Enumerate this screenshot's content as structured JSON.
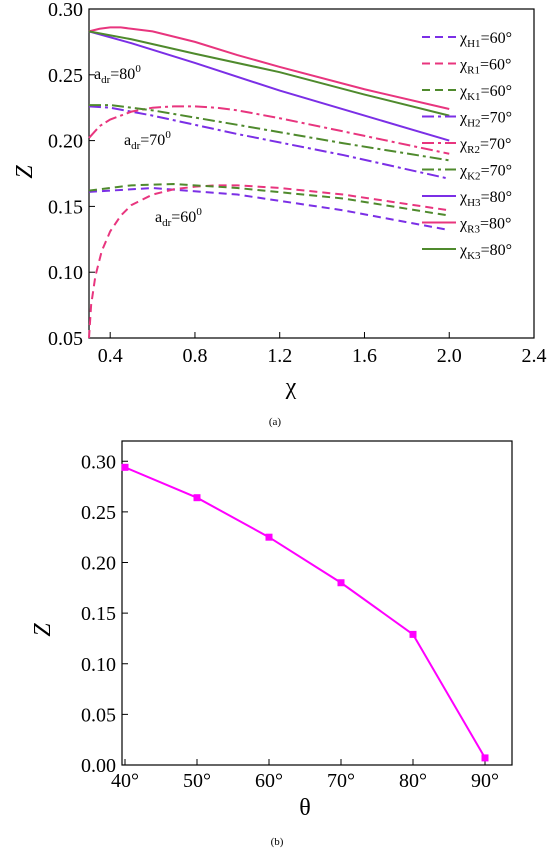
{
  "chart_data": [
    {
      "id": "a",
      "type": "line",
      "caption": "(a)",
      "xlabel": "χ",
      "ylabel": "Z",
      "xlim": [
        0.3,
        2.4
      ],
      "ylim": [
        0.05,
        0.3
      ],
      "xticks": [
        "0.4",
        "0.8",
        "1.2",
        "1.6",
        "2.0",
        "2.4"
      ],
      "yticks": [
        "0.05",
        "0.10",
        "0.15",
        "0.20",
        "0.25",
        "0.30"
      ],
      "legend_position": "right",
      "annotations": [
        {
          "text": "a",
          "sub": "dr",
          "rest": "=80",
          "sup": "0",
          "near": {
            "x": 0.32,
            "y": 0.262
          }
        },
        {
          "text": "a",
          "sub": "dr",
          "rest": "=70",
          "sup": "0",
          "near": {
            "x": 0.42,
            "y": 0.201
          }
        },
        {
          "text": "a",
          "sub": "dr",
          "rest": "=60",
          "sup": "0",
          "near": {
            "x": 0.69,
            "y": 0.137
          }
        }
      ],
      "series": [
        {
          "name": "χH1=60°",
          "base": "χ",
          "sub": "H1",
          "suffix": "=60°",
          "color": "#7b2fe6",
          "dash": "8,5",
          "x": [
            0.3,
            0.6,
            1.0,
            1.5,
            2.0
          ],
          "y": [
            0.161,
            0.164,
            0.159,
            0.147,
            0.132
          ]
        },
        {
          "name": "χR1=60°",
          "base": "χ",
          "sub": "R1",
          "suffix": "=60°",
          "color": "#e8357e",
          "dash": "8,5",
          "x": [
            0.3,
            0.31,
            0.33,
            0.36,
            0.4,
            0.45,
            0.5,
            0.6,
            0.7,
            0.8,
            0.9,
            1.0,
            1.2,
            1.5,
            2.0
          ],
          "y": [
            0.05,
            0.075,
            0.097,
            0.116,
            0.131,
            0.143,
            0.151,
            0.159,
            0.163,
            0.165,
            0.166,
            0.166,
            0.164,
            0.159,
            0.147
          ]
        },
        {
          "name": "χK1=60°",
          "base": "χ",
          "sub": "K1",
          "suffix": "=60°",
          "color": "#4f8a2d",
          "dash": "8,5",
          "x": [
            0.3,
            0.5,
            0.7,
            1.0,
            1.5,
            2.0
          ],
          "y": [
            0.162,
            0.166,
            0.167,
            0.164,
            0.156,
            0.143
          ]
        },
        {
          "name": "χH2=70°",
          "base": "χ",
          "sub": "H2",
          "suffix": "=70°",
          "color": "#7b2fe6",
          "dash": "12,4,3,4",
          "x": [
            0.3,
            0.4,
            0.6,
            1.0,
            1.5,
            2.0
          ],
          "y": [
            0.226,
            0.225,
            0.219,
            0.205,
            0.189,
            0.171
          ]
        },
        {
          "name": "χR2=70°",
          "base": "χ",
          "sub": "R2",
          "suffix": "=70°",
          "color": "#e8357e",
          "dash": "12,4,3,4",
          "x": [
            0.3,
            0.35,
            0.4,
            0.5,
            0.6,
            0.7,
            0.8,
            0.9,
            1.0,
            1.2,
            1.5,
            2.0
          ],
          "y": [
            0.202,
            0.211,
            0.216,
            0.222,
            0.225,
            0.226,
            0.226,
            0.225,
            0.223,
            0.217,
            0.207,
            0.19
          ]
        },
        {
          "name": "χK2=70°",
          "base": "χ",
          "sub": "K2",
          "suffix": "=70°",
          "color": "#4f8a2d",
          "dash": "12,4,3,4",
          "x": [
            0.3,
            0.4,
            0.6,
            1.0,
            1.5,
            2.0
          ],
          "y": [
            0.227,
            0.227,
            0.223,
            0.212,
            0.198,
            0.185
          ]
        },
        {
          "name": "χH3=80°",
          "base": "χ",
          "sub": "H3",
          "suffix": "=80°",
          "color": "#7b2fe6",
          "dash": "",
          "x": [
            0.3,
            0.5,
            0.8,
            1.2,
            1.6,
            2.0
          ],
          "y": [
            0.283,
            0.274,
            0.259,
            0.238,
            0.219,
            0.2
          ]
        },
        {
          "name": "χR3=80°",
          "base": "χ",
          "sub": "R3",
          "suffix": "=80°",
          "color": "#e8357e",
          "dash": "",
          "x": [
            0.3,
            0.35,
            0.4,
            0.45,
            0.5,
            0.6,
            0.8,
            1.0,
            1.2,
            1.6,
            2.0
          ],
          "y": [
            0.283,
            0.285,
            0.286,
            0.286,
            0.285,
            0.283,
            0.275,
            0.265,
            0.256,
            0.239,
            0.224
          ]
        },
        {
          "name": "χK3=80°",
          "base": "χ",
          "sub": "K3",
          "suffix": "=80°",
          "color": "#4f8a2d",
          "dash": "",
          "x": [
            0.3,
            0.5,
            0.8,
            1.2,
            1.6,
            2.0
          ],
          "y": [
            0.283,
            0.277,
            0.266,
            0.252,
            0.235,
            0.219
          ]
        }
      ]
    },
    {
      "id": "b",
      "type": "line",
      "caption": "(b)",
      "xlabel": "θ",
      "ylabel": "Z",
      "ylim": [
        0.0,
        0.32
      ],
      "categories": [
        "40°",
        "50°",
        "60°",
        "70°",
        "80°",
        "90°"
      ],
      "yticks": [
        "0.00",
        "0.05",
        "0.10",
        "0.15",
        "0.20",
        "0.25",
        "0.30"
      ],
      "series": [
        {
          "color": "#ff00ff",
          "marker": "square",
          "values": [
            0.294,
            0.264,
            0.225,
            0.18,
            0.129,
            0.007
          ]
        }
      ]
    }
  ]
}
